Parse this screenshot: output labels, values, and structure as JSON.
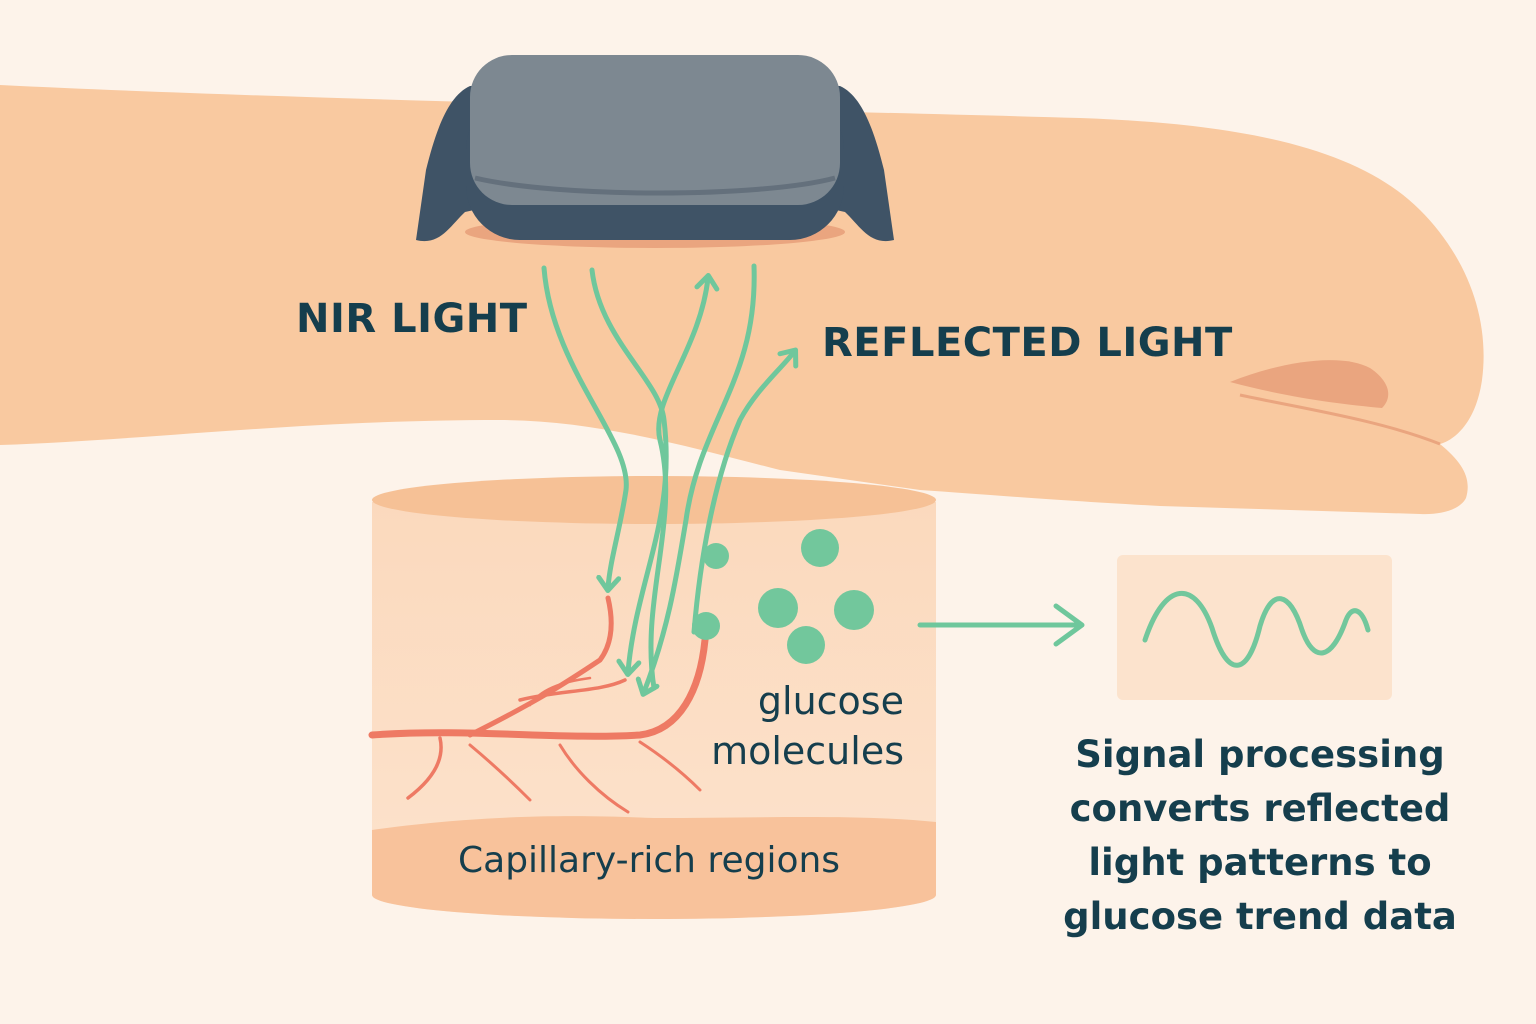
{
  "labels": {
    "nir_light": "NIR LIGHT",
    "reflected_light": "REFLECTED LIGHT",
    "glucose_molecules": "glucose molecules",
    "capillary_regions": "Capillary-rich regions",
    "signal_processing": "Signal processing converts reflected light patterns to glucose trend data"
  },
  "colors": {
    "background": "#fdf3ea",
    "skin": "#f9c9a0",
    "skin_shadow": "#eaa57f",
    "device_dark": "#3f5366",
    "device_top": "#7d8891",
    "light_path": "#6fc79c",
    "glucose": "#72c79c",
    "capillary": "#ee7a64",
    "text": "#153e4d"
  },
  "icons": [
    "wearable-sensor-icon",
    "glucose-molecule-icon",
    "waveform-icon",
    "arrow-right-icon"
  ]
}
